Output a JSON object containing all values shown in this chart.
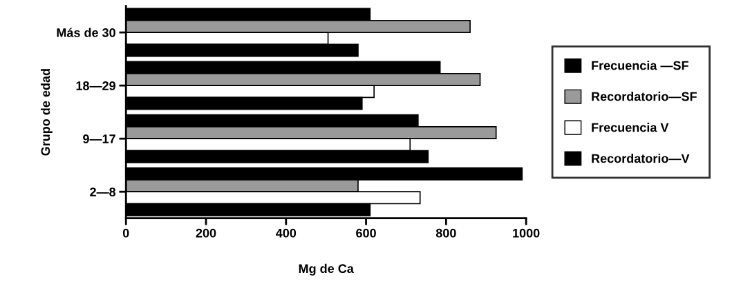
{
  "chart_data": {
    "type": "bar",
    "orientation": "horizontal",
    "xlabel": "Mg de Ca",
    "ylabel": "Grupo de edad",
    "categories": [
      "Más de 30",
      "18—29",
      "9—17",
      "2—8"
    ],
    "series": [
      {
        "name": "Frecuencia —SF",
        "color": "#000000",
        "values": [
          610,
          785,
          730,
          990
        ]
      },
      {
        "name": "Recordatorio—SF",
        "color": "#9a9a9a",
        "values": [
          860,
          885,
          925,
          580
        ]
      },
      {
        "name": "Frecuencia V",
        "color": "#ffffff",
        "values": [
          505,
          620,
          710,
          735
        ]
      },
      {
        "name": "Recordatorio—V",
        "color": "#000000",
        "values": [
          580,
          590,
          755,
          610
        ]
      }
    ],
    "xlim": [
      0,
      1000
    ],
    "xticks": [
      0,
      200,
      400,
      600,
      800,
      1000
    ],
    "grid": false,
    "legend": "right"
  }
}
